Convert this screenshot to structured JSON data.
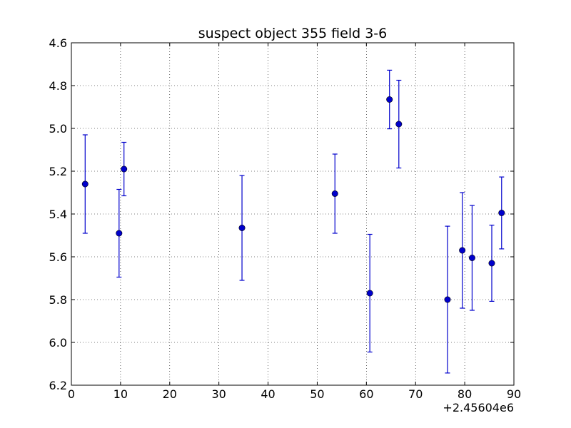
{
  "chart_data": {
    "type": "scatter",
    "title": "suspect object 355 field 3-6",
    "xlabel": "",
    "ylabel": "",
    "x_offset_label": "+2.45604e6",
    "xlim": [
      0,
      90
    ],
    "ylim": [
      4.6,
      6.2
    ],
    "y_inverted": true,
    "grid": true,
    "x_ticks": [
      "0",
      "10",
      "20",
      "30",
      "40",
      "50",
      "60",
      "70",
      "80",
      "90"
    ],
    "y_ticks": [
      "4.6",
      "4.8",
      "5.0",
      "5.2",
      "5.4",
      "5.6",
      "5.8",
      "6.0",
      "6.2"
    ],
    "series": [
      {
        "marker_color": "#0000cc",
        "errorbar_color": "#0000cc",
        "points": [
          {
            "x": 2.8,
            "y": 5.26,
            "yerr": 0.23
          },
          {
            "x": 9.7,
            "y": 5.49,
            "yerr": 0.205
          },
          {
            "x": 10.7,
            "y": 5.19,
            "yerr": 0.125
          },
          {
            "x": 34.7,
            "y": 5.465,
            "yerr": 0.245
          },
          {
            "x": 53.6,
            "y": 5.305,
            "yerr": 0.185
          },
          {
            "x": 60.7,
            "y": 5.77,
            "yerr": 0.275
          },
          {
            "x": 64.7,
            "y": 4.865,
            "yerr": 0.137
          },
          {
            "x": 66.6,
            "y": 4.98,
            "yerr": 0.205
          },
          {
            "x": 76.5,
            "y": 5.8,
            "yerr": 0.343
          },
          {
            "x": 79.5,
            "y": 5.57,
            "yerr": 0.27
          },
          {
            "x": 81.5,
            "y": 5.605,
            "yerr": 0.245
          },
          {
            "x": 85.5,
            "y": 5.63,
            "yerr": 0.178
          },
          {
            "x": 87.5,
            "y": 5.395,
            "yerr": 0.168
          }
        ]
      }
    ]
  }
}
